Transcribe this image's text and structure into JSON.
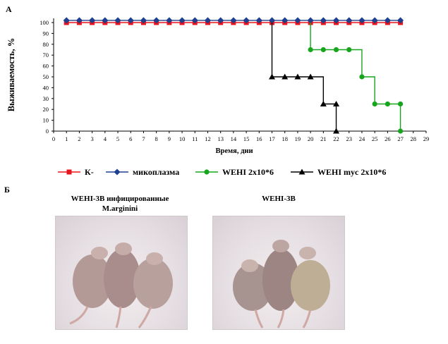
{
  "panel_a_label": "А",
  "panel_b_label": "Б",
  "chart_data": {
    "type": "line",
    "ylabel": "Выживаемость, %",
    "xlabel": "Время, дни",
    "xlim": [
      0,
      29
    ],
    "ylim": [
      0,
      100
    ],
    "xticks": [
      0,
      1,
      2,
      3,
      4,
      5,
      6,
      7,
      8,
      9,
      10,
      11,
      12,
      13,
      14,
      15,
      16,
      17,
      18,
      19,
      20,
      21,
      22,
      23,
      24,
      25,
      26,
      27,
      28,
      29
    ],
    "yticks": [
      0,
      10,
      20,
      30,
      40,
      50,
      60,
      70,
      80,
      90,
      100
    ],
    "legend_position": "bottom",
    "grid": false,
    "series": [
      {
        "name": "К-",
        "color": "#e8141c",
        "marker": "square",
        "x": [
          1,
          2,
          3,
          4,
          5,
          6,
          7,
          8,
          9,
          10,
          11,
          12,
          13,
          14,
          15,
          16,
          17,
          18,
          19,
          20,
          21,
          22,
          23,
          24,
          25,
          26,
          27
        ],
        "y": [
          100,
          100,
          100,
          100,
          100,
          100,
          100,
          100,
          100,
          100,
          100,
          100,
          100,
          100,
          100,
          100,
          100,
          100,
          100,
          100,
          100,
          100,
          100,
          100,
          100,
          100,
          100
        ]
      },
      {
        "name": "микоплазма",
        "color": "#1f3f8f",
        "marker": "diamond",
        "x": [
          1,
          2,
          3,
          4,
          5,
          6,
          7,
          8,
          9,
          10,
          11,
          12,
          13,
          14,
          15,
          16,
          17,
          18,
          19,
          20,
          21,
          22,
          23,
          24,
          25,
          26,
          27
        ],
        "y": [
          102,
          102,
          102,
          102,
          102,
          102,
          102,
          102,
          102,
          102,
          102,
          102,
          102,
          102,
          102,
          102,
          102,
          102,
          102,
          102,
          102,
          102,
          102,
          102,
          102,
          102,
          102
        ]
      },
      {
        "name": "WEHI 2x10*6",
        "color": "#16a51c",
        "marker": "circle",
        "x": [
          20,
          21,
          22,
          23,
          24,
          25,
          26,
          27
        ],
        "y": [
          75,
          75,
          75,
          75,
          50,
          25,
          25,
          25
        ],
        "end_point": [
          27,
          0
        ]
      },
      {
        "name": "WEHI myc 2x10*6",
        "color": "#000000",
        "marker": "triangle",
        "x": [
          17,
          18,
          19,
          20,
          21,
          22
        ],
        "y": [
          50,
          50,
          50,
          50,
          25,
          25
        ],
        "end_point": [
          22,
          0
        ]
      }
    ]
  },
  "photos": [
    {
      "caption_line1": "WEHI-3B инфицированные",
      "caption_line2": "M.arginini"
    },
    {
      "caption_line1": "WEHI-3B",
      "caption_line2": ""
    }
  ]
}
